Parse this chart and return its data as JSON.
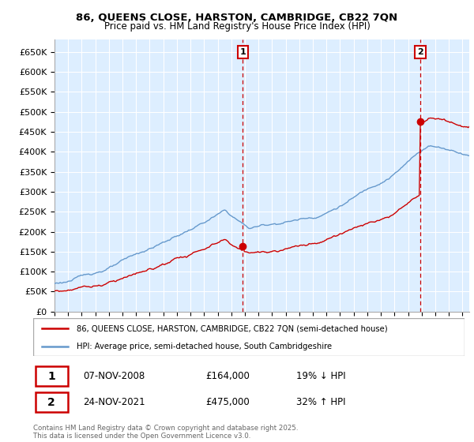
{
  "title_line1": "86, QUEENS CLOSE, HARSTON, CAMBRIDGE, CB22 7QN",
  "title_line2": "Price paid vs. HM Land Registry's House Price Index (HPI)",
  "legend_line1": "86, QUEENS CLOSE, HARSTON, CAMBRIDGE, CB22 7QN (semi-detached house)",
  "legend_line2": "HPI: Average price, semi-detached house, South Cambridgeshire",
  "footer": "Contains HM Land Registry data © Crown copyright and database right 2025.\nThis data is licensed under the Open Government Licence v3.0.",
  "point1_label": "1",
  "point1_date": "07-NOV-2008",
  "point1_price": "£164,000",
  "point1_hpi": "19% ↓ HPI",
  "point1_x": 2008.85,
  "point1_y": 164000,
  "point2_label": "2",
  "point2_date": "24-NOV-2021",
  "point2_price": "£475,000",
  "point2_hpi": "32% ↑ HPI",
  "point2_x": 2021.9,
  "point2_y": 475000,
  "red_color": "#cc0000",
  "blue_color": "#6699cc",
  "bg_color": "#ddeeff",
  "ylim_min": 0,
  "ylim_max": 680000,
  "yticks": [
    0,
    50000,
    100000,
    150000,
    200000,
    250000,
    300000,
    350000,
    400000,
    450000,
    500000,
    550000,
    600000,
    650000
  ],
  "xlim_start": 1995,
  "xlim_end": 2025.5
}
